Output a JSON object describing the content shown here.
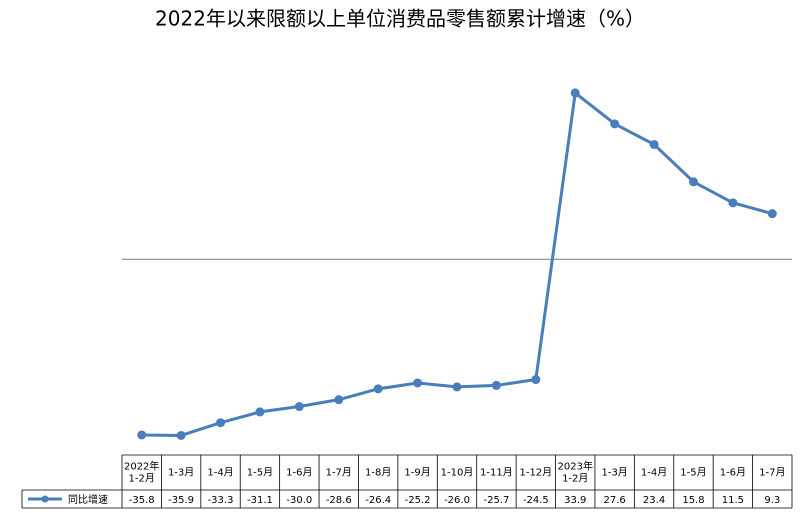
{
  "chart_data": {
    "type": "line",
    "title": "2022年以来限额以上单位消费品零售额累计增速（%）",
    "categories": [
      "2022年\n1-2月",
      "1-3月",
      "1-4月",
      "1-5月",
      "1-6月",
      "1-7月",
      "1-8月",
      "1-9月",
      "1-10月",
      "1-11月",
      "1-12月",
      "2023年\n1-2月",
      "1-3月",
      "1-4月",
      "1-5月",
      "1-6月",
      "1-7月"
    ],
    "series": [
      {
        "name": "同比增速",
        "color": "#4a7ebb",
        "values": [
          -35.8,
          -35.9,
          -33.3,
          -31.1,
          -30.0,
          -28.6,
          -26.4,
          -25.2,
          -26.0,
          -25.7,
          -24.5,
          33.9,
          27.6,
          23.4,
          15.8,
          11.5,
          9.3
        ],
        "value_labels": [
          "-35.8",
          "-35.9",
          "-33.3",
          "-31.1",
          "-30.0",
          "-28.6",
          "-26.4",
          "-25.2",
          "-26.0",
          "-25.7",
          "-24.5",
          "33.9",
          "27.6",
          "23.4",
          "15.8",
          "11.5",
          "9.3"
        ]
      }
    ],
    "ylim": [
      -40,
      40
    ]
  }
}
